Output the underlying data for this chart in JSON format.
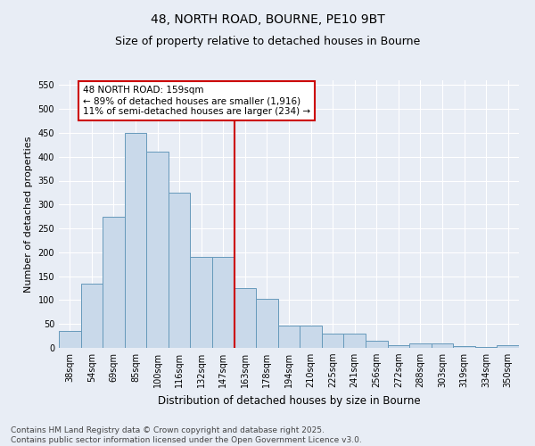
{
  "title": "48, NORTH ROAD, BOURNE, PE10 9BT",
  "subtitle": "Size of property relative to detached houses in Bourne",
  "xlabel": "Distribution of detached houses by size in Bourne",
  "ylabel": "Number of detached properties",
  "categories": [
    "38sqm",
    "54sqm",
    "69sqm",
    "85sqm",
    "100sqm",
    "116sqm",
    "132sqm",
    "147sqm",
    "163sqm",
    "178sqm",
    "194sqm",
    "210sqm",
    "225sqm",
    "241sqm",
    "256sqm",
    "272sqm",
    "288sqm",
    "303sqm",
    "319sqm",
    "334sqm",
    "350sqm"
  ],
  "bar_values": [
    35,
    135,
    275,
    450,
    410,
    325,
    190,
    190,
    125,
    103,
    46,
    46,
    30,
    30,
    15,
    5,
    9,
    9,
    4,
    2,
    5
  ],
  "bar_color": "#c9d9ea",
  "bar_edge_color": "#6699bb",
  "vline_x": 8,
  "vline_color": "#cc0000",
  "annotation_title": "48 NORTH ROAD: 159sqm",
  "annotation_line1": "← 89% of detached houses are smaller (1,916)",
  "annotation_line2": "11% of semi-detached houses are larger (234) →",
  "annotation_box_color": "#cc0000",
  "ylim": [
    0,
    560
  ],
  "yticks": [
    0,
    50,
    100,
    150,
    200,
    250,
    300,
    350,
    400,
    450,
    500,
    550
  ],
  "background_color": "#e8edf5",
  "grid_color": "#ffffff",
  "footer_line1": "Contains HM Land Registry data © Crown copyright and database right 2025.",
  "footer_line2": "Contains public sector information licensed under the Open Government Licence v3.0.",
  "title_fontsize": 10,
  "subtitle_fontsize": 9,
  "xlabel_fontsize": 8.5,
  "ylabel_fontsize": 8,
  "tick_fontsize": 7,
  "footer_fontsize": 6.5,
  "annot_fontsize": 7.5
}
